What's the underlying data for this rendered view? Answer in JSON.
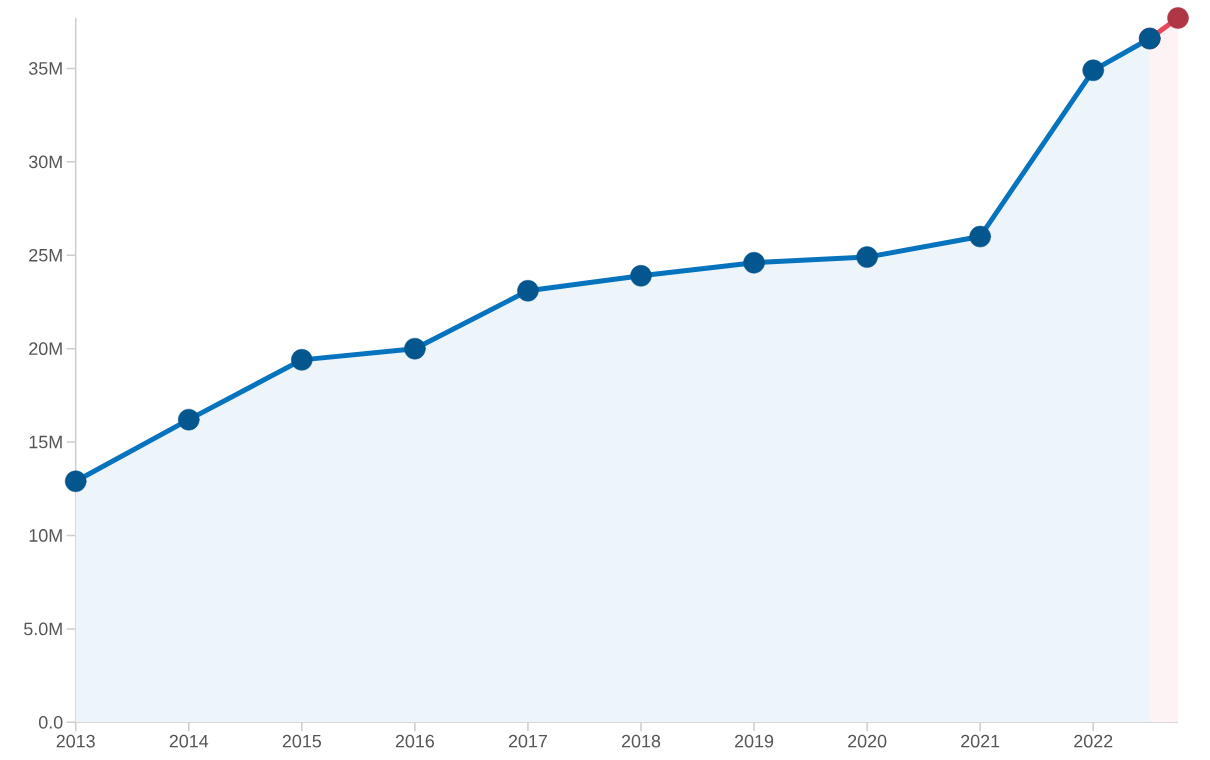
{
  "chart_data": {
    "type": "area",
    "x": [
      2013,
      2014,
      2015,
      2016,
      2017,
      2018,
      2019,
      2020,
      2021,
      2022,
      2022.5
    ],
    "series": [
      {
        "color": "#0673be",
        "values": [
          12.9,
          16.2,
          19.4,
          20.0,
          23.1,
          23.9,
          24.6,
          24.9,
          26.0,
          34.9,
          36.6
        ]
      },
      {
        "color": "#e8485c",
        "x": [
          2022.5,
          2022.75
        ],
        "values": [
          36.6,
          37.7
        ]
      }
    ],
    "xlim": [
      2013,
      2022.75
    ],
    "ylim": [
      0,
      37.7
    ],
    "xticks": [
      2013,
      2014,
      2015,
      2016,
      2017,
      2018,
      2019,
      2020,
      2021,
      2022
    ],
    "yticks": [
      {
        "value": 0,
        "label": "0.0"
      },
      {
        "value": 5,
        "label": "5.0M"
      },
      {
        "value": 10,
        "label": "10M"
      },
      {
        "value": 15,
        "label": "15M"
      },
      {
        "value": 20,
        "label": "20M"
      },
      {
        "value": 25,
        "label": "25M"
      },
      {
        "value": 30,
        "label": "30M"
      },
      {
        "value": 35,
        "label": "35M"
      }
    ],
    "marker": "circle",
    "line_style": "solid"
  }
}
